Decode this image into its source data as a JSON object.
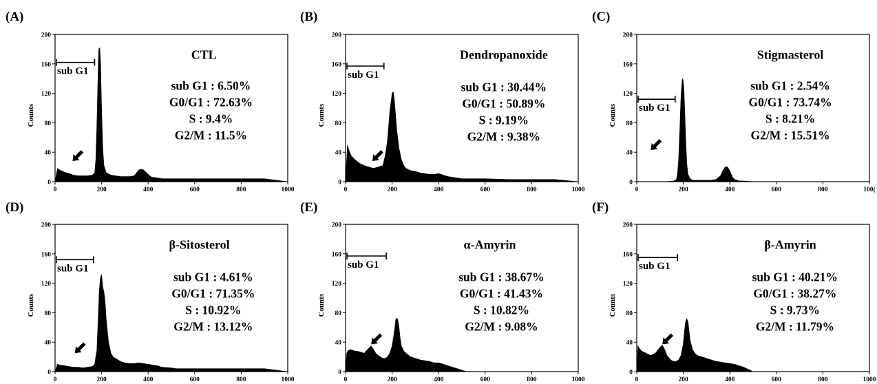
{
  "chart_data": [
    {
      "type": "area",
      "panel_label": "(A)",
      "title": "CTL",
      "ylabel": "Counts",
      "xlim": [
        0,
        1000
      ],
      "ylim": [
        0,
        200
      ],
      "xticks": [
        "0",
        "200",
        "400",
        "600",
        "800",
        "1000"
      ],
      "yticks": [
        "0",
        "40",
        "80",
        "120",
        "160",
        "200"
      ],
      "gate_label": "sub G1",
      "gate_range": [
        0,
        170
      ],
      "gate_y": 162,
      "arrow_at": [
        75,
        28
      ],
      "stats": [
        "sub G1 : 6.50%",
        "G0/G1 : 72.63%",
        "S : 9.4%",
        "G2/M : 11.5%"
      ],
      "x": [
        0,
        10,
        20,
        40,
        60,
        80,
        100,
        120,
        140,
        160,
        170,
        175,
        180,
        185,
        188,
        192,
        196,
        200,
        205,
        210,
        220,
        240,
        260,
        280,
        300,
        320,
        340,
        350,
        360,
        370,
        380,
        390,
        400,
        410,
        420,
        440,
        460,
        500,
        600,
        700,
        800,
        900,
        1000
      ],
      "y": [
        0,
        18,
        16,
        13,
        11,
        9,
        8,
        8,
        8,
        9,
        12,
        30,
        80,
        150,
        180,
        182,
        160,
        100,
        45,
        22,
        12,
        9,
        8,
        7,
        7,
        7,
        8,
        12,
        16,
        17,
        16,
        13,
        10,
        7,
        6,
        5,
        4,
        4,
        4,
        4,
        4,
        4,
        0
      ]
    },
    {
      "type": "area",
      "panel_label": "(B)",
      "title": "Dendropanoxide",
      "ylabel": "Counts",
      "xlim": [
        0,
        1000
      ],
      "ylim": [
        0,
        200
      ],
      "xticks": [
        "0",
        "200",
        "400",
        "600",
        "800",
        "1000"
      ],
      "yticks": [
        "0",
        "40",
        "80",
        "120",
        "160",
        "200"
      ],
      "gate_label": "sub G1",
      "gate_range": [
        0,
        165
      ],
      "gate_y": 157,
      "arrow_at": [
        115,
        28
      ],
      "stats": [
        "sub G1 : 30.44%",
        "G0/G1 : 50.89%",
        "S : 9.19%",
        "G2/M : 9.38%"
      ],
      "x": [
        0,
        8,
        15,
        25,
        40,
        60,
        80,
        100,
        120,
        140,
        160,
        170,
        180,
        190,
        200,
        205,
        210,
        215,
        220,
        230,
        240,
        250,
        260,
        280,
        300,
        320,
        340,
        360,
        380,
        400,
        420,
        440,
        460,
        500,
        600,
        700,
        800,
        900,
        1000
      ],
      "y": [
        0,
        50,
        42,
        35,
        30,
        25,
        22,
        20,
        18,
        20,
        22,
        35,
        55,
        95,
        120,
        122,
        110,
        90,
        70,
        45,
        30,
        22,
        18,
        15,
        14,
        12,
        11,
        10,
        10,
        11,
        9,
        7,
        6,
        4,
        4,
        3,
        3,
        3,
        0
      ]
    },
    {
      "type": "area",
      "panel_label": "(C)",
      "title": "Stigmasterol",
      "ylabel": "Counts",
      "xlim": [
        0,
        1000
      ],
      "ylim": [
        0,
        200
      ],
      "xticks": [
        "0",
        "200",
        "400",
        "600",
        "800",
        "100("
      ],
      "yticks": [
        "0",
        "40",
        "80",
        "120",
        "160",
        "200"
      ],
      "gate_label": "sub G1",
      "gate_range": [
        0,
        165
      ],
      "gate_y": 112,
      "arrow_at": [
        60,
        43
      ],
      "stats": [
        "sub G1 : 2.54%",
        "G0/G1 : 73.74%",
        "S : 8.21%",
        "G2/M : 15.51%"
      ],
      "x": [
        0,
        60,
        120,
        160,
        170,
        175,
        180,
        185,
        190,
        195,
        198,
        202,
        206,
        210,
        215,
        220,
        230,
        240,
        260,
        280,
        300,
        320,
        340,
        360,
        370,
        380,
        390,
        400,
        410,
        420,
        440,
        460,
        500,
        1000
      ],
      "y": [
        0,
        0,
        0,
        1,
        3,
        10,
        30,
        70,
        115,
        138,
        140,
        130,
        100,
        60,
        25,
        10,
        4,
        2,
        2,
        2,
        2,
        2,
        3,
        8,
        15,
        20,
        20,
        15,
        7,
        3,
        1,
        1,
        0,
        0
      ]
    },
    {
      "type": "area",
      "panel_label": "(D)",
      "title": "β-Sitosterol",
      "ylabel": "Counts",
      "xlim": [
        0,
        1000
      ],
      "ylim": [
        0,
        200
      ],
      "xticks": [
        "0",
        "200",
        "400",
        "600",
        "800",
        "1000"
      ],
      "yticks": [
        "0",
        "40",
        "80",
        "120",
        "160",
        "200"
      ],
      "gate_label": "sub G1",
      "gate_range": [
        0,
        165
      ],
      "gate_y": 152,
      "arrow_at": [
        85,
        25
      ],
      "stats": [
        "sub G1 : 4.61%",
        "G0/G1 : 71.35%",
        "S : 10.92%",
        "G2/M : 13.12%"
      ],
      "x": [
        0,
        10,
        20,
        40,
        60,
        80,
        100,
        120,
        140,
        160,
        170,
        180,
        185,
        190,
        195,
        200,
        205,
        210,
        215,
        220,
        230,
        240,
        250,
        260,
        280,
        300,
        320,
        340,
        360,
        380,
        400,
        420,
        440,
        460,
        500,
        520,
        600,
        700,
        800,
        900,
        1000
      ],
      "y": [
        0,
        10,
        9,
        8,
        7,
        6,
        6,
        5,
        6,
        7,
        10,
        30,
        70,
        110,
        128,
        132,
        115,
        108,
        95,
        70,
        40,
        25,
        20,
        18,
        14,
        12,
        11,
        11,
        12,
        11,
        10,
        9,
        8,
        6,
        5,
        4,
        4,
        4,
        4,
        4,
        0
      ]
    },
    {
      "type": "area",
      "panel_label": "(E)",
      "title": "α-Amyrin",
      "ylabel": "Counts",
      "xlim": [
        0,
        1000
      ],
      "ylim": [
        0,
        200
      ],
      "xticks": [
        "0",
        "200",
        "400",
        "600",
        "800",
        "1000"
      ],
      "yticks": [
        "0",
        "40",
        "80",
        "120",
        "160",
        "200"
      ],
      "gate_label": "sub G1",
      "gate_range": [
        0,
        175
      ],
      "gate_y": 157,
      "arrow_at": [
        110,
        37
      ],
      "stats": [
        "sub G1 : 38.67%",
        "G0/G1 : 41.43%",
        "S : 10.82%",
        "G2/M : 9.08%"
      ],
      "x": [
        0,
        5,
        10,
        20,
        40,
        60,
        80,
        100,
        110,
        120,
        130,
        140,
        150,
        160,
        170,
        180,
        190,
        200,
        210,
        215,
        220,
        225,
        230,
        235,
        240,
        250,
        260,
        280,
        300,
        320,
        340,
        360,
        380,
        400,
        420,
        440,
        460,
        480,
        500,
        520,
        1000
      ],
      "y": [
        0,
        25,
        28,
        30,
        28,
        27,
        25,
        32,
        35,
        30,
        25,
        22,
        20,
        18,
        18,
        20,
        25,
        35,
        55,
        70,
        73,
        70,
        60,
        45,
        35,
        28,
        25,
        20,
        18,
        16,
        15,
        14,
        12,
        12,
        10,
        8,
        6,
        4,
        2,
        0,
        0
      ]
    },
    {
      "type": "area",
      "panel_label": "(F)",
      "title": "β-Amyrin",
      "ylabel": "Counts",
      "xlim": [
        0,
        1000
      ],
      "ylim": [
        0,
        200
      ],
      "xticks": [
        "0",
        "200",
        "400",
        "600",
        "800",
        "1000"
      ],
      "yticks": [
        "0",
        "40",
        "80",
        "120",
        "160",
        "200"
      ],
      "gate_label": "sub G1",
      "gate_range": [
        0,
        175
      ],
      "gate_y": 155,
      "arrow_at": [
        110,
        37
      ],
      "stats": [
        "sub G1 : 40.21%",
        "G0/G1 : 38.27%",
        "S : 9.73%",
        "G2/M : 11.79%"
      ],
      "x": [
        0,
        5,
        10,
        20,
        40,
        60,
        80,
        100,
        110,
        120,
        130,
        140,
        150,
        160,
        170,
        180,
        190,
        200,
        205,
        210,
        215,
        220,
        225,
        230,
        240,
        250,
        260,
        280,
        300,
        320,
        340,
        360,
        380,
        400,
        420,
        440,
        460,
        480,
        500,
        1000
      ],
      "y": [
        0,
        35,
        32,
        28,
        25,
        22,
        25,
        33,
        36,
        30,
        22,
        18,
        15,
        14,
        14,
        16,
        22,
        38,
        55,
        68,
        72,
        68,
        55,
        42,
        30,
        25,
        22,
        20,
        18,
        16,
        14,
        13,
        12,
        11,
        10,
        8,
        6,
        3,
        0,
        0
      ]
    }
  ]
}
